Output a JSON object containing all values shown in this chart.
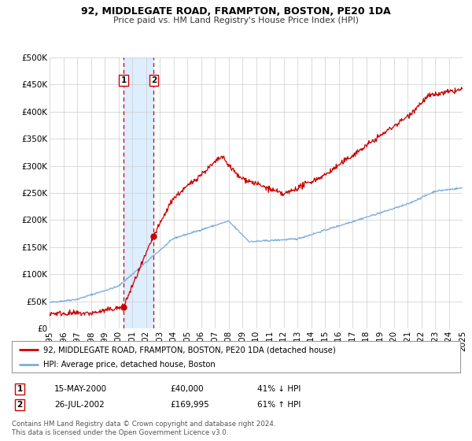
{
  "title1": "92, MIDDLEGATE ROAD, FRAMPTON, BOSTON, PE20 1DA",
  "title2": "Price paid vs. HM Land Registry's House Price Index (HPI)",
  "legend_line1": "92, MIDDLEGATE ROAD, FRAMPTON, BOSTON, PE20 1DA (detached house)",
  "legend_line2": "HPI: Average price, detached house, Boston",
  "footnote1": "Contains HM Land Registry data © Crown copyright and database right 2024.",
  "footnote2": "This data is licensed under the Open Government Licence v3.0.",
  "sale1_date": "15-MAY-2000",
  "sale1_price": "£40,000",
  "sale1_hpi": "41% ↓ HPI",
  "sale2_date": "26-JUL-2002",
  "sale2_price": "£169,995",
  "sale2_hpi": "61% ↑ HPI",
  "sale1_year": 2000.37,
  "sale1_value": 40000,
  "sale2_year": 2002.56,
  "sale2_value": 169995,
  "vline1_x": 2000.37,
  "vline2_x": 2002.56,
  "shade_start": 2000.37,
  "shade_end": 2002.56,
  "red_color": "#cc0000",
  "blue_color": "#7aacdc",
  "shade_color": "#ddeeff",
  "grid_color": "#cccccc",
  "bg_color": "#ffffff",
  "ylim": [
    0,
    500000
  ],
  "xlim_start": 1995,
  "xlim_end": 2025,
  "yticks": [
    0,
    50000,
    100000,
    150000,
    200000,
    250000,
    300000,
    350000,
    400000,
    450000,
    500000
  ],
  "ytick_labels": [
    "£0",
    "£50K",
    "£100K",
    "£150K",
    "£200K",
    "£250K",
    "£300K",
    "£350K",
    "£400K",
    "£450K",
    "£500K"
  ],
  "xticks": [
    1995,
    1996,
    1997,
    1998,
    1999,
    2000,
    2001,
    2002,
    2003,
    2004,
    2005,
    2006,
    2007,
    2008,
    2009,
    2010,
    2011,
    2012,
    2013,
    2014,
    2015,
    2016,
    2017,
    2018,
    2019,
    2020,
    2021,
    2022,
    2023,
    2024,
    2025
  ]
}
